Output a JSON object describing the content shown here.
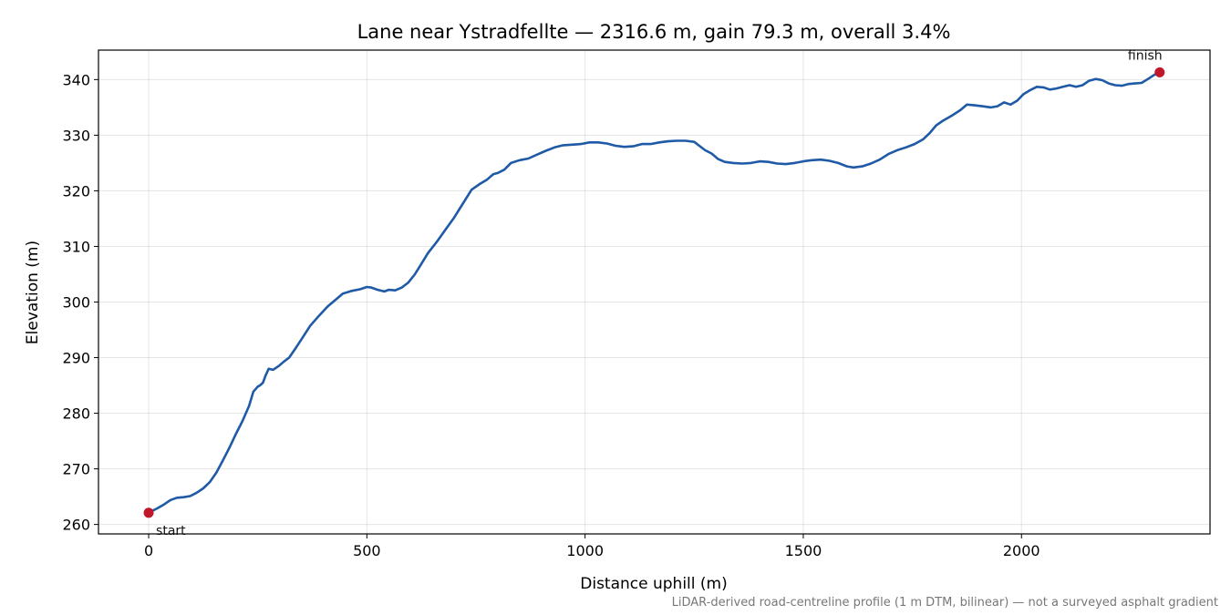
{
  "chart_data": {
    "type": "line",
    "title": "Lane near Ystradfellte — 2316.6 m, gain 79.3 m, overall 3.4%",
    "xlabel": "Distance uphill (m)",
    "ylabel": "Elevation (m)",
    "footnote": "LiDAR-derived road-centreline profile (1 m DTM, bilinear) — not a surveyed asphalt gradient",
    "xlim": [
      -115,
      2432
    ],
    "ylim": [
      258.3,
      345.3
    ],
    "x_ticks": [
      0,
      500,
      1000,
      1500,
      2000
    ],
    "y_ticks": [
      260,
      270,
      280,
      290,
      300,
      310,
      320,
      330,
      340
    ],
    "grid": true,
    "line_color": "#1f5aa6",
    "marker_color": "#c0182a",
    "series": [
      {
        "points": [
          [
            0,
            262.1
          ],
          [
            20,
            262.9
          ],
          [
            35,
            263.6
          ],
          [
            50,
            264.4
          ],
          [
            65,
            264.8
          ],
          [
            80,
            264.9
          ],
          [
            95,
            265.1
          ],
          [
            110,
            265.7
          ],
          [
            125,
            266.5
          ],
          [
            140,
            267.6
          ],
          [
            155,
            269.3
          ],
          [
            170,
            271.5
          ],
          [
            185,
            273.8
          ],
          [
            200,
            276.3
          ],
          [
            215,
            278.6
          ],
          [
            230,
            281.3
          ],
          [
            240,
            283.9
          ],
          [
            250,
            284.8
          ],
          [
            255,
            285.0
          ],
          [
            262,
            285.5
          ],
          [
            268,
            286.8
          ],
          [
            275,
            288.0
          ],
          [
            285,
            287.8
          ],
          [
            298,
            288.5
          ],
          [
            310,
            289.3
          ],
          [
            322,
            290.0
          ],
          [
            335,
            291.5
          ],
          [
            350,
            293.3
          ],
          [
            370,
            295.7
          ],
          [
            390,
            297.5
          ],
          [
            410,
            299.2
          ],
          [
            430,
            300.5
          ],
          [
            445,
            301.5
          ],
          [
            465,
            302.0
          ],
          [
            485,
            302.3
          ],
          [
            500,
            302.7
          ],
          [
            510,
            302.6
          ],
          [
            525,
            302.2
          ],
          [
            540,
            301.9
          ],
          [
            550,
            302.2
          ],
          [
            565,
            302.1
          ],
          [
            580,
            302.6
          ],
          [
            595,
            303.5
          ],
          [
            610,
            305.0
          ],
          [
            625,
            306.9
          ],
          [
            640,
            308.8
          ],
          [
            660,
            310.8
          ],
          [
            680,
            313.0
          ],
          [
            700,
            315.2
          ],
          [
            720,
            317.7
          ],
          [
            740,
            320.2
          ],
          [
            760,
            321.3
          ],
          [
            775,
            322.0
          ],
          [
            790,
            323.0
          ],
          [
            800,
            323.2
          ],
          [
            815,
            323.8
          ],
          [
            830,
            325.0
          ],
          [
            850,
            325.5
          ],
          [
            870,
            325.8
          ],
          [
            890,
            326.5
          ],
          [
            910,
            327.2
          ],
          [
            930,
            327.8
          ],
          [
            950,
            328.2
          ],
          [
            970,
            328.3
          ],
          [
            990,
            328.4
          ],
          [
            1010,
            328.7
          ],
          [
            1030,
            328.7
          ],
          [
            1050,
            328.5
          ],
          [
            1070,
            328.1
          ],
          [
            1090,
            327.9
          ],
          [
            1110,
            328.0
          ],
          [
            1130,
            328.4
          ],
          [
            1150,
            328.4
          ],
          [
            1170,
            328.7
          ],
          [
            1190,
            328.9
          ],
          [
            1210,
            329.0
          ],
          [
            1230,
            329.0
          ],
          [
            1250,
            328.8
          ],
          [
            1260,
            328.2
          ],
          [
            1275,
            327.3
          ],
          [
            1290,
            326.7
          ],
          [
            1305,
            325.7
          ],
          [
            1320,
            325.2
          ],
          [
            1340,
            325.0
          ],
          [
            1360,
            324.9
          ],
          [
            1380,
            325.0
          ],
          [
            1400,
            325.3
          ],
          [
            1420,
            325.2
          ],
          [
            1440,
            324.9
          ],
          [
            1460,
            324.8
          ],
          [
            1480,
            325.0
          ],
          [
            1500,
            325.3
          ],
          [
            1520,
            325.5
          ],
          [
            1540,
            325.6
          ],
          [
            1560,
            325.4
          ],
          [
            1580,
            325.0
          ],
          [
            1600,
            324.4
          ],
          [
            1615,
            324.2
          ],
          [
            1635,
            324.4
          ],
          [
            1655,
            324.9
          ],
          [
            1675,
            325.6
          ],
          [
            1695,
            326.6
          ],
          [
            1715,
            327.3
          ],
          [
            1735,
            327.8
          ],
          [
            1755,
            328.4
          ],
          [
            1775,
            329.3
          ],
          [
            1790,
            330.4
          ],
          [
            1805,
            331.8
          ],
          [
            1820,
            332.6
          ],
          [
            1840,
            333.5
          ],
          [
            1860,
            334.5
          ],
          [
            1875,
            335.5
          ],
          [
            1890,
            335.4
          ],
          [
            1910,
            335.2
          ],
          [
            1930,
            335.0
          ],
          [
            1945,
            335.2
          ],
          [
            1960,
            335.9
          ],
          [
            1975,
            335.5
          ],
          [
            1990,
            336.2
          ],
          [
            2005,
            337.4
          ],
          [
            2020,
            338.1
          ],
          [
            2035,
            338.7
          ],
          [
            2050,
            338.6
          ],
          [
            2065,
            338.2
          ],
          [
            2080,
            338.4
          ],
          [
            2095,
            338.7
          ],
          [
            2110,
            339.0
          ],
          [
            2125,
            338.7
          ],
          [
            2140,
            339.0
          ],
          [
            2155,
            339.8
          ],
          [
            2170,
            340.1
          ],
          [
            2185,
            339.9
          ],
          [
            2200,
            339.3
          ],
          [
            2215,
            339.0
          ],
          [
            2230,
            338.9
          ],
          [
            2245,
            339.2
          ],
          [
            2260,
            339.3
          ],
          [
            2275,
            339.4
          ],
          [
            2290,
            340.1
          ],
          [
            2305,
            340.9
          ],
          [
            2316.6,
            341.3
          ]
        ]
      }
    ],
    "markers": [
      {
        "label": "start",
        "x": 0,
        "y": 262.1
      },
      {
        "label": "finish",
        "x": 2316.6,
        "y": 341.3
      }
    ]
  }
}
